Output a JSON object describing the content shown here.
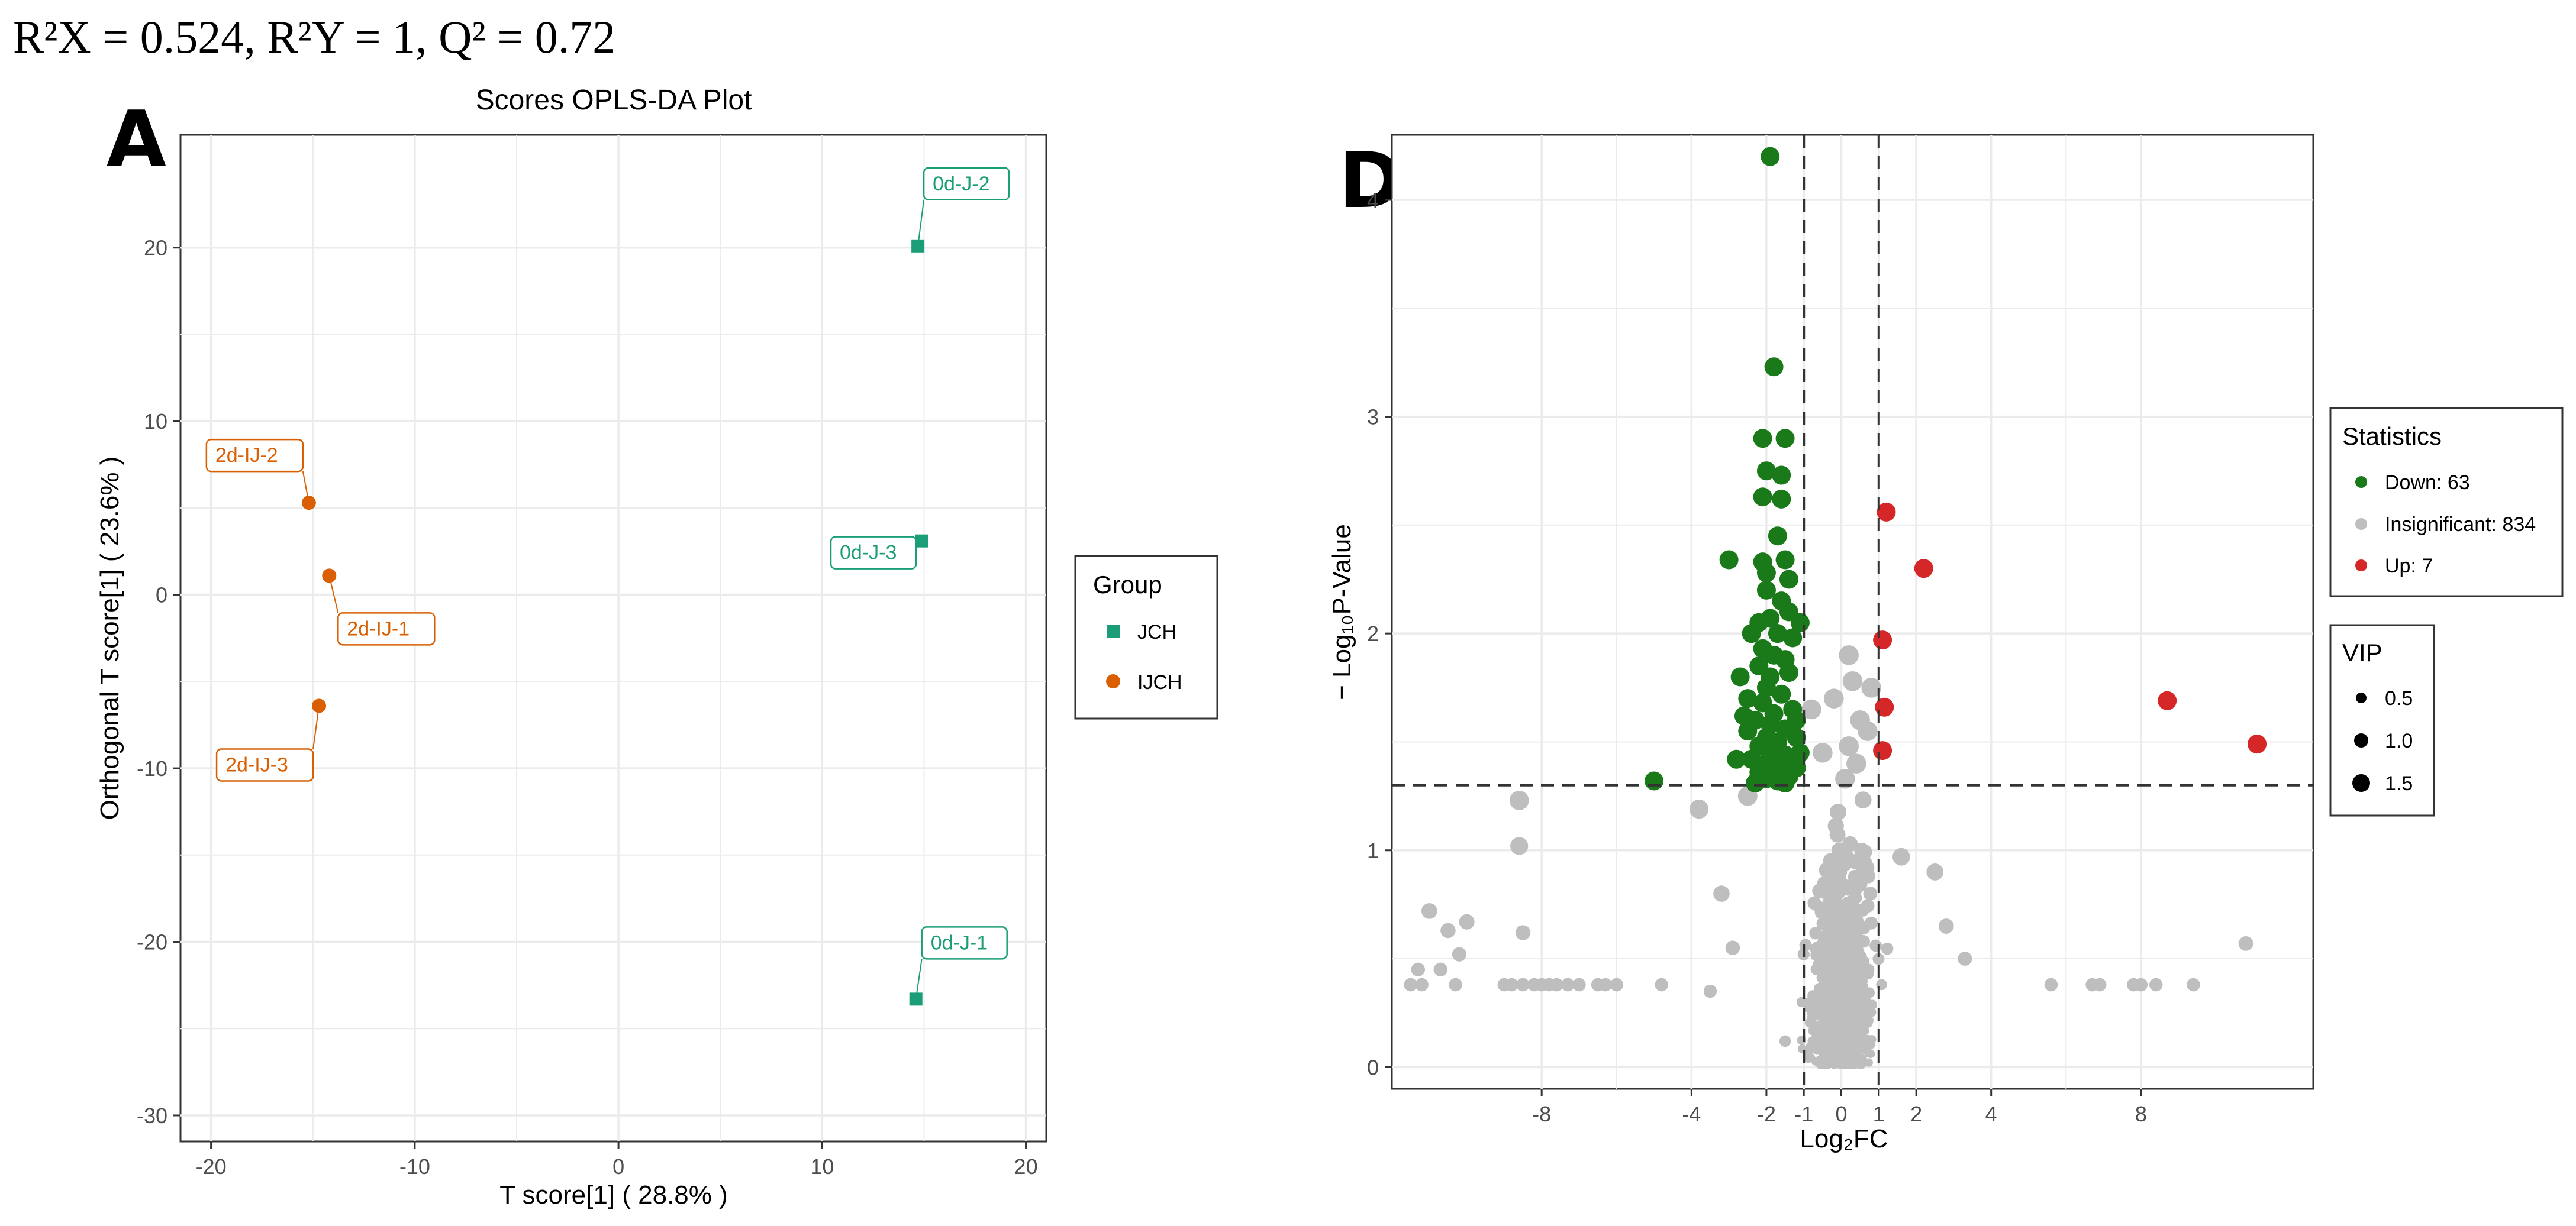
{
  "header": {
    "stats_line": "R²X = 0.524, R²Y = 1, Q² = 0.72"
  },
  "colors": {
    "jch": "#1b9e77",
    "ijch": "#d95f02",
    "down": "#1a7a1a",
    "insignificant": "#bebebe",
    "up": "#d62728",
    "grid": "#ebebeb",
    "threshold_line": "#333333"
  },
  "chart_data": [
    {
      "panel": "A",
      "type": "scatter",
      "title": "Scores OPLS-DA Plot",
      "xlabel": "T score[1] ( 28.8% )",
      "ylabel": "Orthogonal T score[1] ( 23.6% )",
      "xlim": [
        -21.5,
        21
      ],
      "ylim": [
        -31.5,
        26.5
      ],
      "x_ticks": [
        -20,
        -10,
        0,
        10,
        20
      ],
      "y_ticks": [
        -30,
        -20,
        -10,
        0,
        10,
        20
      ],
      "grid": true,
      "legend": {
        "title": "Group",
        "placement": "right"
      },
      "series": [
        {
          "name": "JCH",
          "marker": "square",
          "points": [
            {
              "label": "0d-J-2",
              "x": 14.7,
              "y": 20.1
            },
            {
              "label": "0d-J-3",
              "x": 14.9,
              "y": 3.1
            },
            {
              "label": "0d-J-1",
              "x": 14.6,
              "y": -23.3
            }
          ]
        },
        {
          "name": "IJCH",
          "marker": "circle",
          "points": [
            {
              "label": "2d-IJ-2",
              "x": -15.2,
              "y": 5.3
            },
            {
              "label": "2d-IJ-1",
              "x": -14.2,
              "y": 1.1
            },
            {
              "label": "2d-IJ-3",
              "x": -14.7,
              "y": -6.4
            }
          ]
        }
      ]
    },
    {
      "panel": "D",
      "type": "scatter",
      "title": "",
      "xlabel": "Log₂FC",
      "ylabel": "− Log₁₀P-Value",
      "xlim": [
        -12,
        12.6
      ],
      "ylim": [
        -0.1,
        4.3
      ],
      "x_ticks": [
        -8,
        -4,
        -2,
        -1,
        0,
        1,
        2,
        4,
        8
      ],
      "y_ticks": [
        0,
        1,
        2,
        3,
        4
      ],
      "grid": true,
      "thresholds": {
        "x": [
          -1,
          1
        ],
        "y": 1.3
      },
      "legend": {
        "title": "Statistics",
        "placement": "right"
      },
      "size_legend": {
        "title": "VIP",
        "values": [
          "0.5",
          "1.0",
          "1.5"
        ]
      },
      "series": [
        {
          "name": "Down: 63",
          "points": [
            [
              -1.9,
              4.2
            ],
            [
              -1.8,
              3.23
            ],
            [
              -2.1,
              2.9
            ],
            [
              -1.5,
              2.9
            ],
            [
              -2.0,
              2.75
            ],
            [
              -1.6,
              2.73
            ],
            [
              -2.1,
              2.63
            ],
            [
              -1.6,
              2.62
            ],
            [
              -1.7,
              2.45
            ],
            [
              -3.0,
              2.34
            ],
            [
              -2.1,
              2.33
            ],
            [
              -1.5,
              2.34
            ],
            [
              -2.0,
              2.28
            ],
            [
              -1.4,
              2.25
            ],
            [
              -2.0,
              2.2
            ],
            [
              -1.6,
              2.15
            ],
            [
              -1.9,
              2.07
            ],
            [
              -1.4,
              2.1
            ],
            [
              -2.2,
              2.05
            ],
            [
              -1.7,
              2.0
            ],
            [
              -1.3,
              1.98
            ],
            [
              -2.1,
              1.93
            ],
            [
              -1.8,
              1.9
            ],
            [
              -1.5,
              1.88
            ],
            [
              -2.2,
              1.85
            ],
            [
              -1.9,
              1.8
            ],
            [
              -1.4,
              1.82
            ],
            [
              -2.0,
              1.75
            ],
            [
              -1.6,
              1.72
            ],
            [
              -2.5,
              1.7
            ],
            [
              -2.1,
              1.68
            ],
            [
              -1.8,
              1.63
            ],
            [
              -1.3,
              1.65
            ],
            [
              -2.6,
              1.62
            ],
            [
              -2.3,
              1.6
            ],
            [
              -1.9,
              1.58
            ],
            [
              -1.5,
              1.56
            ],
            [
              -2.0,
              1.52
            ],
            [
              -1.7,
              1.5
            ],
            [
              -1.2,
              1.52
            ],
            [
              -2.2,
              1.48
            ],
            [
              -1.9,
              1.45
            ],
            [
              -1.5,
              1.44
            ],
            [
              -2.4,
              1.42
            ],
            [
              -2.0,
              1.4
            ],
            [
              -1.6,
              1.38
            ],
            [
              -1.3,
              1.41
            ],
            [
              -2.2,
              1.36
            ],
            [
              -1.8,
              1.35
            ],
            [
              -1.4,
              1.34
            ],
            [
              -2.0,
              1.33
            ],
            [
              -5.0,
              1.32
            ],
            [
              -1.7,
              1.32
            ],
            [
              -2.3,
              1.31
            ],
            [
              -1.5,
              1.31
            ],
            [
              -2.8,
              1.42
            ],
            [
              -1.1,
              1.45
            ],
            [
              -2.5,
              1.55
            ],
            [
              -1.2,
              1.6
            ],
            [
              -2.7,
              1.8
            ],
            [
              -1.1,
              2.05
            ],
            [
              -2.4,
              2.0
            ],
            [
              -1.2,
              1.38
            ]
          ]
        },
        {
          "name": "Insignificant: 834",
          "points": []
        },
        {
          "name": "Up: 7",
          "points": [
            [
              1.2,
              2.56
            ],
            [
              2.2,
              2.3
            ],
            [
              1.1,
              1.97
            ],
            [
              1.15,
              1.66
            ],
            [
              1.1,
              1.46
            ],
            [
              8.7,
              1.69
            ],
            [
              11.1,
              1.49
            ]
          ]
        }
      ]
    }
  ]
}
